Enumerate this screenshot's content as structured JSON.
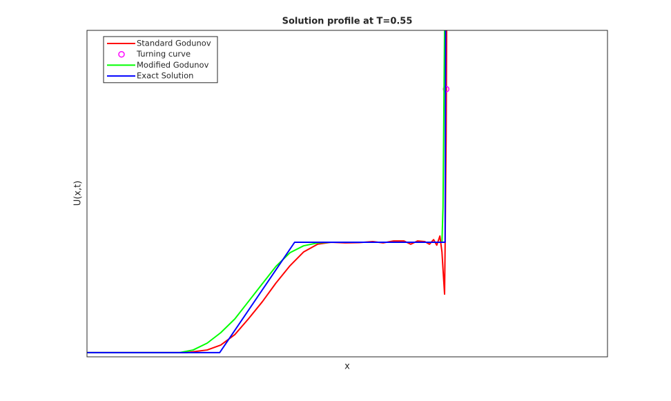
{
  "chart_data": {
    "type": "line",
    "title": "Solution profile at T=0.55",
    "xlabel": "x",
    "ylabel": "U(x,t)",
    "xlim": [
      0,
      1
    ],
    "ylim": [
      0,
      1
    ],
    "legend": "upper left",
    "series": [
      {
        "name": "Standard Godunov",
        "color": "#ff0000",
        "mode": "line",
        "x": [
          0,
          0.191,
          0.231,
          0.257,
          0.284,
          0.31,
          0.337,
          0.363,
          0.39,
          0.416,
          0.443,
          0.469,
          0.496,
          0.523,
          0.549,
          0.569,
          0.589,
          0.609,
          0.622,
          0.635,
          0.649,
          0.658,
          0.666,
          0.672,
          0.678,
          0.682,
          0.684,
          0.687,
          0.688,
          0.69,
          0.691
        ],
        "y": [
          0.013,
          0.013,
          0.021,
          0.036,
          0.068,
          0.116,
          0.169,
          0.226,
          0.279,
          0.321,
          0.345,
          0.351,
          0.349,
          0.35,
          0.353,
          0.349,
          0.355,
          0.355,
          0.345,
          0.355,
          0.353,
          0.345,
          0.359,
          0.342,
          0.37,
          0.321,
          0.268,
          0.192,
          0.332,
          0.67,
          1
        ]
      },
      {
        "name": "Turning curve",
        "color": "#ff00ff",
        "mode": "markers",
        "x": [
          0.69
        ],
        "y": [
          0.82
        ]
      },
      {
        "name": "Modified Godunov",
        "color": "#00ff00",
        "mode": "line",
        "x": [
          0,
          0.178,
          0.204,
          0.231,
          0.257,
          0.284,
          0.31,
          0.337,
          0.363,
          0.39,
          0.416,
          0.443,
          0.469,
          0.682,
          0.684,
          0.687
        ],
        "y": [
          0.013,
          0.013,
          0.021,
          0.042,
          0.074,
          0.116,
          0.169,
          0.224,
          0.277,
          0.319,
          0.34,
          0.349,
          0.351,
          0.351,
          0.459,
          1
        ]
      },
      {
        "name": "Exact Solution",
        "color": "#0000ff",
        "mode": "line",
        "x": [
          0,
          0.255,
          0.399,
          0.688,
          0.689
        ],
        "y": [
          0.013,
          0.013,
          0.351,
          0.351,
          1
        ]
      }
    ]
  }
}
